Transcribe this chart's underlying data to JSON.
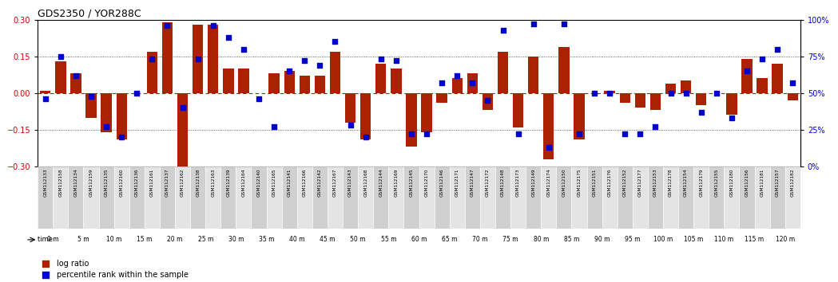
{
  "title": "GDS2350 / YOR288C",
  "gsm_labels": [
    "GSM112133",
    "GSM112158",
    "GSM112134",
    "GSM112159",
    "GSM112135",
    "GSM112160",
    "GSM112136",
    "GSM112161",
    "GSM112137",
    "GSM112162",
    "GSM112138",
    "GSM112163",
    "GSM112139",
    "GSM112164",
    "GSM112140",
    "GSM112165",
    "GSM112141",
    "GSM112166",
    "GSM112142",
    "GSM112167",
    "GSM112143",
    "GSM112168",
    "GSM112144",
    "GSM112169",
    "GSM112145",
    "GSM112170",
    "GSM112146",
    "GSM112171",
    "GSM112147",
    "GSM112172",
    "GSM112148",
    "GSM112173",
    "GSM112149",
    "GSM112174",
    "GSM112150",
    "GSM112175",
    "GSM112151",
    "GSM112176",
    "GSM112152",
    "GSM112177",
    "GSM112153",
    "GSM112178",
    "GSM112154",
    "GSM112179",
    "GSM112155",
    "GSM112180",
    "GSM112156",
    "GSM112181",
    "GSM112157",
    "GSM112182"
  ],
  "time_labels": [
    "0 m",
    "5 m",
    "10 m",
    "15 m",
    "20 m",
    "25 m",
    "30 m",
    "35 m",
    "40 m",
    "45 m",
    "50 m",
    "55 m",
    "60 m",
    "65 m",
    "70 m",
    "75 m",
    "80 m",
    "85 m",
    "90 m",
    "95 m",
    "100 m",
    "105 m",
    "110 m",
    "115 m",
    "120 m"
  ],
  "log_ratio": [
    0.01,
    0.13,
    0.08,
    -0.1,
    -0.16,
    -0.19,
    0.0,
    0.17,
    0.29,
    -0.3,
    0.28,
    0.28,
    0.1,
    0.1,
    0.0,
    0.08,
    0.09,
    0.07,
    0.07,
    0.17,
    -0.12,
    -0.19,
    0.12,
    0.1,
    -0.22,
    -0.16,
    -0.04,
    0.06,
    0.08,
    -0.07,
    0.17,
    -0.14,
    0.15,
    -0.27,
    0.19,
    -0.19,
    0.0,
    0.01,
    -0.04,
    -0.06,
    -0.07,
    0.04,
    0.05,
    -0.05,
    0.0,
    -0.09,
    0.14,
    0.06,
    0.12,
    -0.03
  ],
  "percentile": [
    46,
    75,
    62,
    48,
    27,
    20,
    50,
    73,
    96,
    40,
    73,
    96,
    88,
    80,
    46,
    27,
    65,
    72,
    69,
    85,
    28,
    20,
    73,
    72,
    22,
    22,
    57,
    62,
    57,
    45,
    93,
    22,
    97,
    13,
    97,
    22,
    50,
    50,
    22,
    22,
    27,
    50,
    50,
    37,
    50,
    33,
    65,
    73,
    80,
    57
  ],
  "bar_color": "#aa2200",
  "dot_color": "#0000cc",
  "left_ylim": [
    -0.3,
    0.3
  ],
  "right_ylim": [
    0,
    100
  ],
  "left_yticks": [
    -0.3,
    -0.15,
    0.0,
    0.15,
    0.3
  ],
  "right_yticks": [
    0,
    25,
    50,
    75,
    100
  ],
  "right_yticklabels": [
    "0%",
    "25%",
    "50%",
    "75%",
    "100%"
  ],
  "hline_color_zero": "#cc0000",
  "hline_dotted_color": "#333333",
  "bg_color": "#ffffff",
  "xlabel_area_color": "#7dce7d",
  "gsm_bg_even": "#d0d0d0",
  "gsm_bg_odd": "#e4e4e4",
  "legend_log_ratio": "log ratio",
  "legend_percentile": "percentile rank within the sample"
}
